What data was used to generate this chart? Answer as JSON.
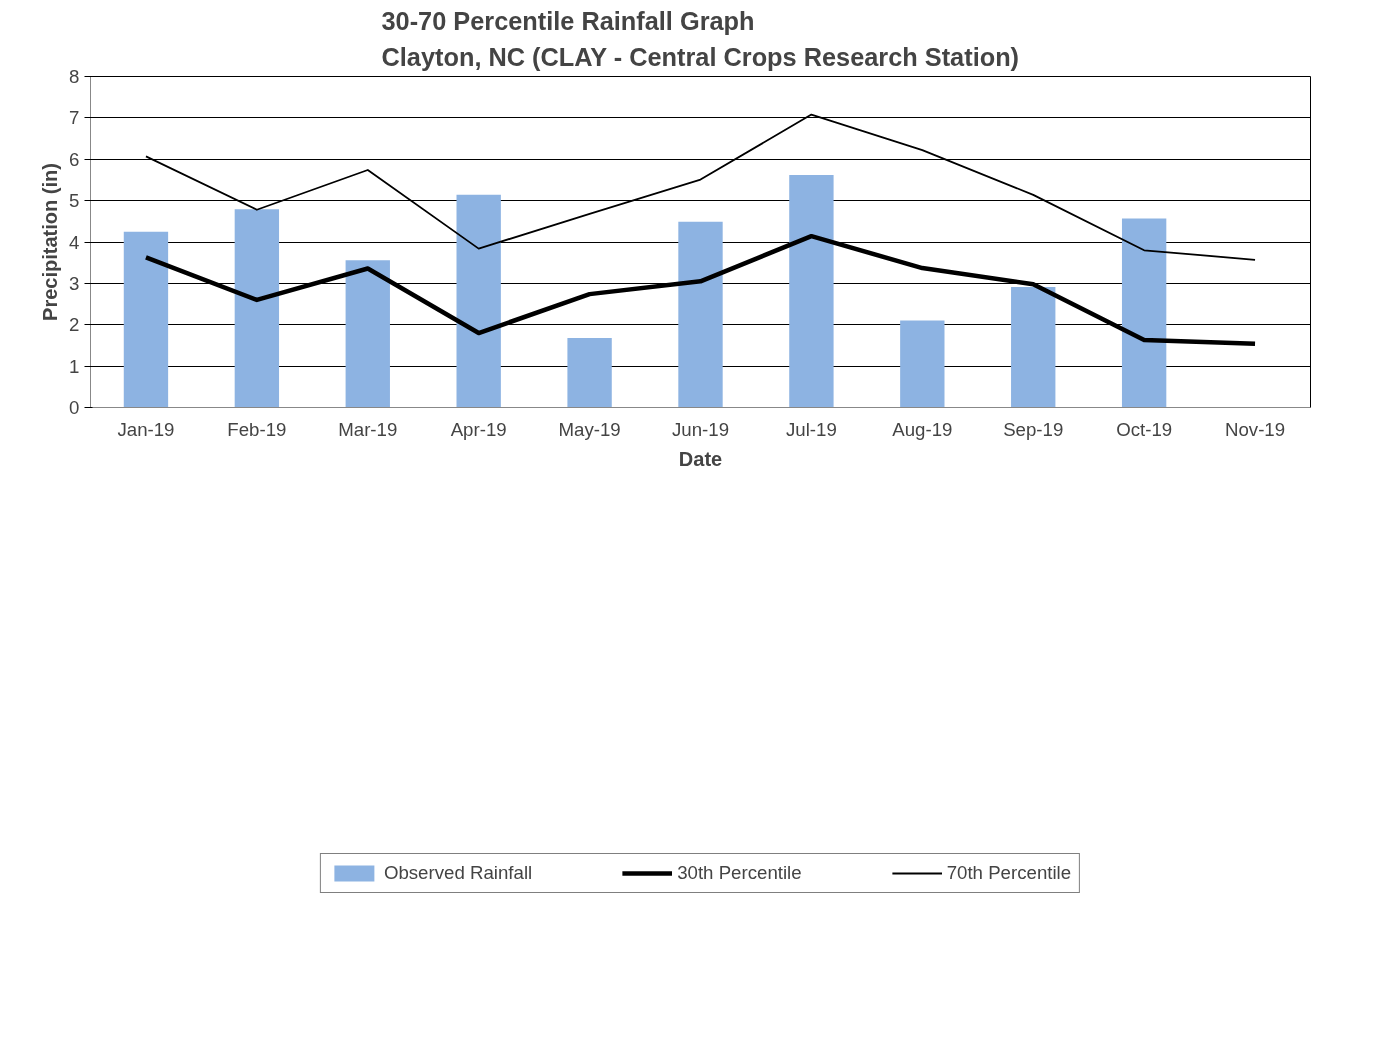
{
  "chart_data": {
    "type": "bar",
    "title": "30-70 Percentile Rainfall Graph\nClayton, NC (CLAY - Central Crops Research Station)",
    "xlabel": "Date",
    "ylabel": "Precipitation (in)",
    "categories": [
      "Jan-19",
      "Feb-19",
      "Mar-19",
      "Apr-19",
      "May-19",
      "Jun-19",
      "Jul-19",
      "Aug-19",
      "Sep-19",
      "Oct-19",
      "Nov-19"
    ],
    "series": [
      {
        "name": "Observed Rainfall",
        "color": "#8db3e2",
        "values": [
          4.25,
          4.79,
          3.56,
          5.14,
          1.68,
          4.49,
          5.62,
          2.1,
          2.91,
          4.57,
          null
        ]
      },
      {
        "name": "30th Percentile",
        "type": "line",
        "color": "#000000",
        "values": [
          3.63,
          2.6,
          3.36,
          1.8,
          2.74,
          3.05,
          4.14,
          3.37,
          2.98,
          1.63,
          1.54
        ]
      },
      {
        "name": "70th Percentile",
        "type": "line",
        "color": "#000000",
        "values": [
          6.07,
          4.78,
          5.74,
          3.84,
          4.68,
          5.51,
          7.08,
          6.22,
          5.14,
          3.8,
          3.57
        ]
      }
    ],
    "ylim": [
      0,
      8
    ],
    "yticks": [
      0,
      1,
      2,
      3,
      4,
      5,
      6,
      7,
      8
    ],
    "grid": "y",
    "legend": "bottom",
    "marker": "none",
    "line_style": "solid"
  }
}
